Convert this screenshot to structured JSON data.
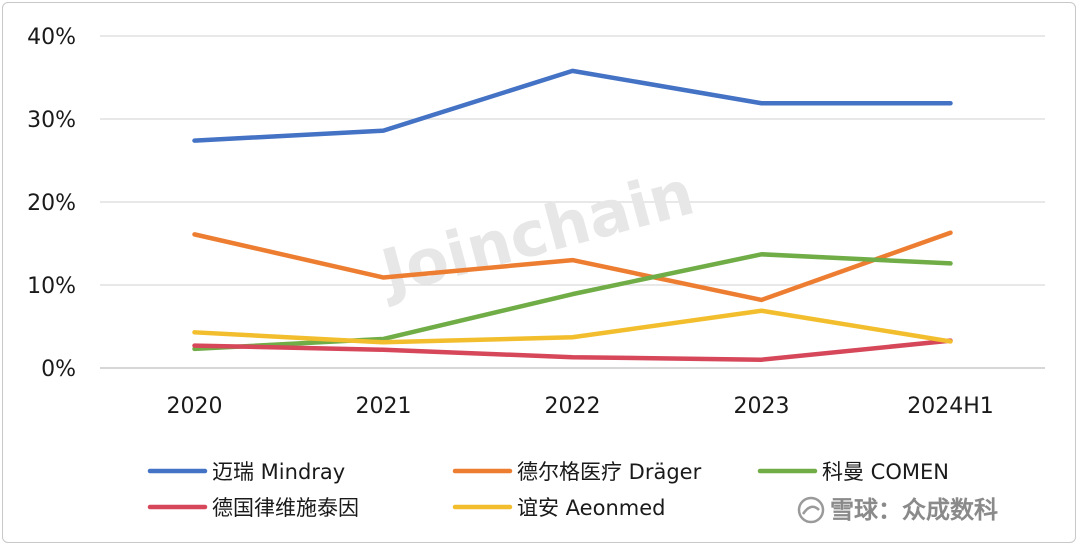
{
  "chart_data": {
    "type": "line",
    "categories": [
      "2020",
      "2021",
      "2022",
      "2023",
      "2024H1"
    ],
    "ylim": [
      0,
      40
    ],
    "yticks": [
      "0%",
      "10%",
      "20%",
      "30%",
      "40%"
    ],
    "grid": true,
    "legend_position": "bottom",
    "series": [
      {
        "name": "迈瑞 Mindray",
        "color": "#4472C4",
        "values": [
          27.4,
          28.6,
          35.8,
          31.9,
          31.9
        ]
      },
      {
        "name": "德尔格医疗 Dräger",
        "color": "#ED7D31",
        "values": [
          16.1,
          10.9,
          13.0,
          8.2,
          16.3
        ]
      },
      {
        "name": "科曼 COMEN",
        "color": "#70AD47",
        "values": [
          2.3,
          3.5,
          8.9,
          13.7,
          12.6
        ]
      },
      {
        "name": "德国律维施泰因",
        "color": "#D6475A",
        "values": [
          2.7,
          2.2,
          1.3,
          1.0,
          3.3
        ]
      },
      {
        "name": "谊安 Aeonmed",
        "color": "#F2BE2D",
        "values": [
          4.3,
          3.1,
          3.7,
          6.9,
          3.2
        ]
      }
    ]
  },
  "watermark": "Joinchain",
  "source_badge": "雪球：众成数科"
}
